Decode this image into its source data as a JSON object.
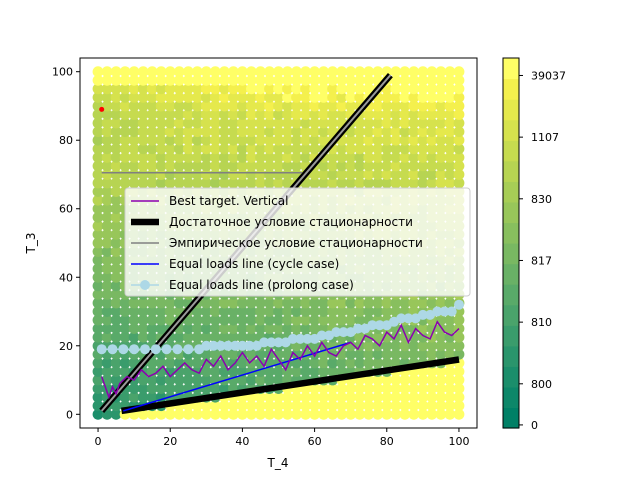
{
  "chart_data": {
    "type": "heatmap",
    "xlabel": "T_4",
    "ylabel": "T_3",
    "xlim": [
      -5,
      105
    ],
    "ylim": [
      -4,
      104
    ],
    "x_ticks": [
      0,
      20,
      40,
      60,
      80,
      100
    ],
    "y_ticks": [
      0,
      20,
      40,
      60,
      80,
      100
    ],
    "heatmap": {
      "x_range": [
        0,
        100
      ],
      "y_range": [
        0,
        100
      ],
      "description_zones": [
        {
          "region": "top band",
          "value_level": "high"
        },
        {
          "region": "lower-left wedge",
          "value_level": "low"
        },
        {
          "region": "bottom-right triangle",
          "value_level": "highest"
        }
      ]
    },
    "colorbar": {
      "tick_labels": [
        "0",
        "800",
        "810",
        "817",
        "830",
        "1107",
        "39037"
      ],
      "colors": [
        "#008066",
        "#0d8769",
        "#1b8e6b",
        "#2a956c",
        "#3a9c6c",
        "#4aa36b",
        "#59aa69",
        "#69b166",
        "#79b862",
        "#88bf5e",
        "#98c65a",
        "#a7cd56",
        "#b7d452",
        "#c6db4f",
        "#d6e24d",
        "#e5e94c",
        "#f4f04d",
        "#ffff66"
      ]
    },
    "legend": {
      "placement": "center-right",
      "entries": [
        {
          "label": "Best target. Vertical",
          "color": "#8b00b0",
          "style": "line"
        },
        {
          "label": "Достаточное условие стационарности",
          "color": "#000000",
          "style": "thick-line"
        },
        {
          "label": "Эмпирическое условие стационарности",
          "color": "#808080",
          "style": "line"
        },
        {
          "label": "Equal loads line (cycle case)",
          "color": "#0000ff",
          "style": "line"
        },
        {
          "label": "Equal loads line (prolong case)",
          "color": "#add8e6",
          "style": "line-marker"
        }
      ]
    },
    "series": [
      {
        "name": "Достаточное условие стационарности",
        "segments": [
          {
            "x": [
              1,
              81
            ],
            "y": [
              1,
              99
            ]
          },
          {
            "x": [
              6.5,
              100
            ],
            "y": [
              1,
              16
            ]
          }
        ]
      },
      {
        "name": "Эмпирическое условие стационарности",
        "x": [
          1,
          56.5
        ],
        "y": [
          70.5,
          70.5
        ]
      },
      {
        "name": "Equal loads line (cycle case)",
        "x": [
          7,
          70
        ],
        "y": [
          1,
          21
        ]
      },
      {
        "name": "Equal loads line (prolong case)",
        "x": [
          1,
          4,
          7,
          10,
          13,
          16,
          19,
          22,
          25,
          28,
          30,
          32,
          34,
          36,
          38,
          40,
          42,
          44,
          46,
          48,
          50,
          52,
          54,
          56,
          58,
          60,
          62,
          64,
          66,
          68,
          70,
          72,
          74,
          76,
          78,
          80,
          82,
          84,
          86,
          88,
          90,
          92,
          94,
          96,
          98,
          100
        ],
        "y": [
          19,
          19,
          19,
          19,
          19,
          19,
          19,
          19,
          19,
          19,
          20,
          20,
          20,
          20,
          20,
          20,
          20,
          20,
          21,
          21,
          21,
          21,
          22,
          22,
          22,
          22,
          23,
          23,
          24,
          24,
          24,
          25,
          25,
          26,
          26,
          26,
          27,
          28,
          28,
          28,
          29,
          29,
          30,
          30,
          30,
          32
        ]
      },
      {
        "name": "Best target. Vertical",
        "x": [
          1,
          2,
          3,
          4,
          5,
          6,
          8,
          10,
          12,
          14,
          16,
          18,
          20,
          22,
          24,
          26,
          28,
          30,
          32,
          34,
          36,
          38,
          40,
          42,
          44,
          46,
          48,
          50,
          52,
          54,
          56,
          58,
          60,
          62,
          64,
          66,
          68,
          70,
          72,
          74,
          76,
          78,
          80,
          82,
          84,
          86,
          88,
          90,
          92,
          94,
          96,
          98,
          100
        ],
        "y": [
          11,
          8,
          5,
          8,
          6,
          9,
          11,
          10,
          13,
          11,
          12,
          14,
          11,
          13,
          15,
          13,
          12,
          16,
          14,
          17,
          13,
          15,
          18,
          15,
          17,
          14,
          19,
          16,
          13,
          18,
          16,
          20,
          17,
          21,
          18,
          17,
          20,
          21,
          19,
          23,
          22,
          20,
          24,
          22,
          26,
          21,
          25,
          23,
          22,
          27,
          24,
          23,
          25
        ]
      },
      {
        "name": "red point",
        "type": "scatter",
        "x": [
          1
        ],
        "y": [
          89
        ]
      }
    ]
  }
}
